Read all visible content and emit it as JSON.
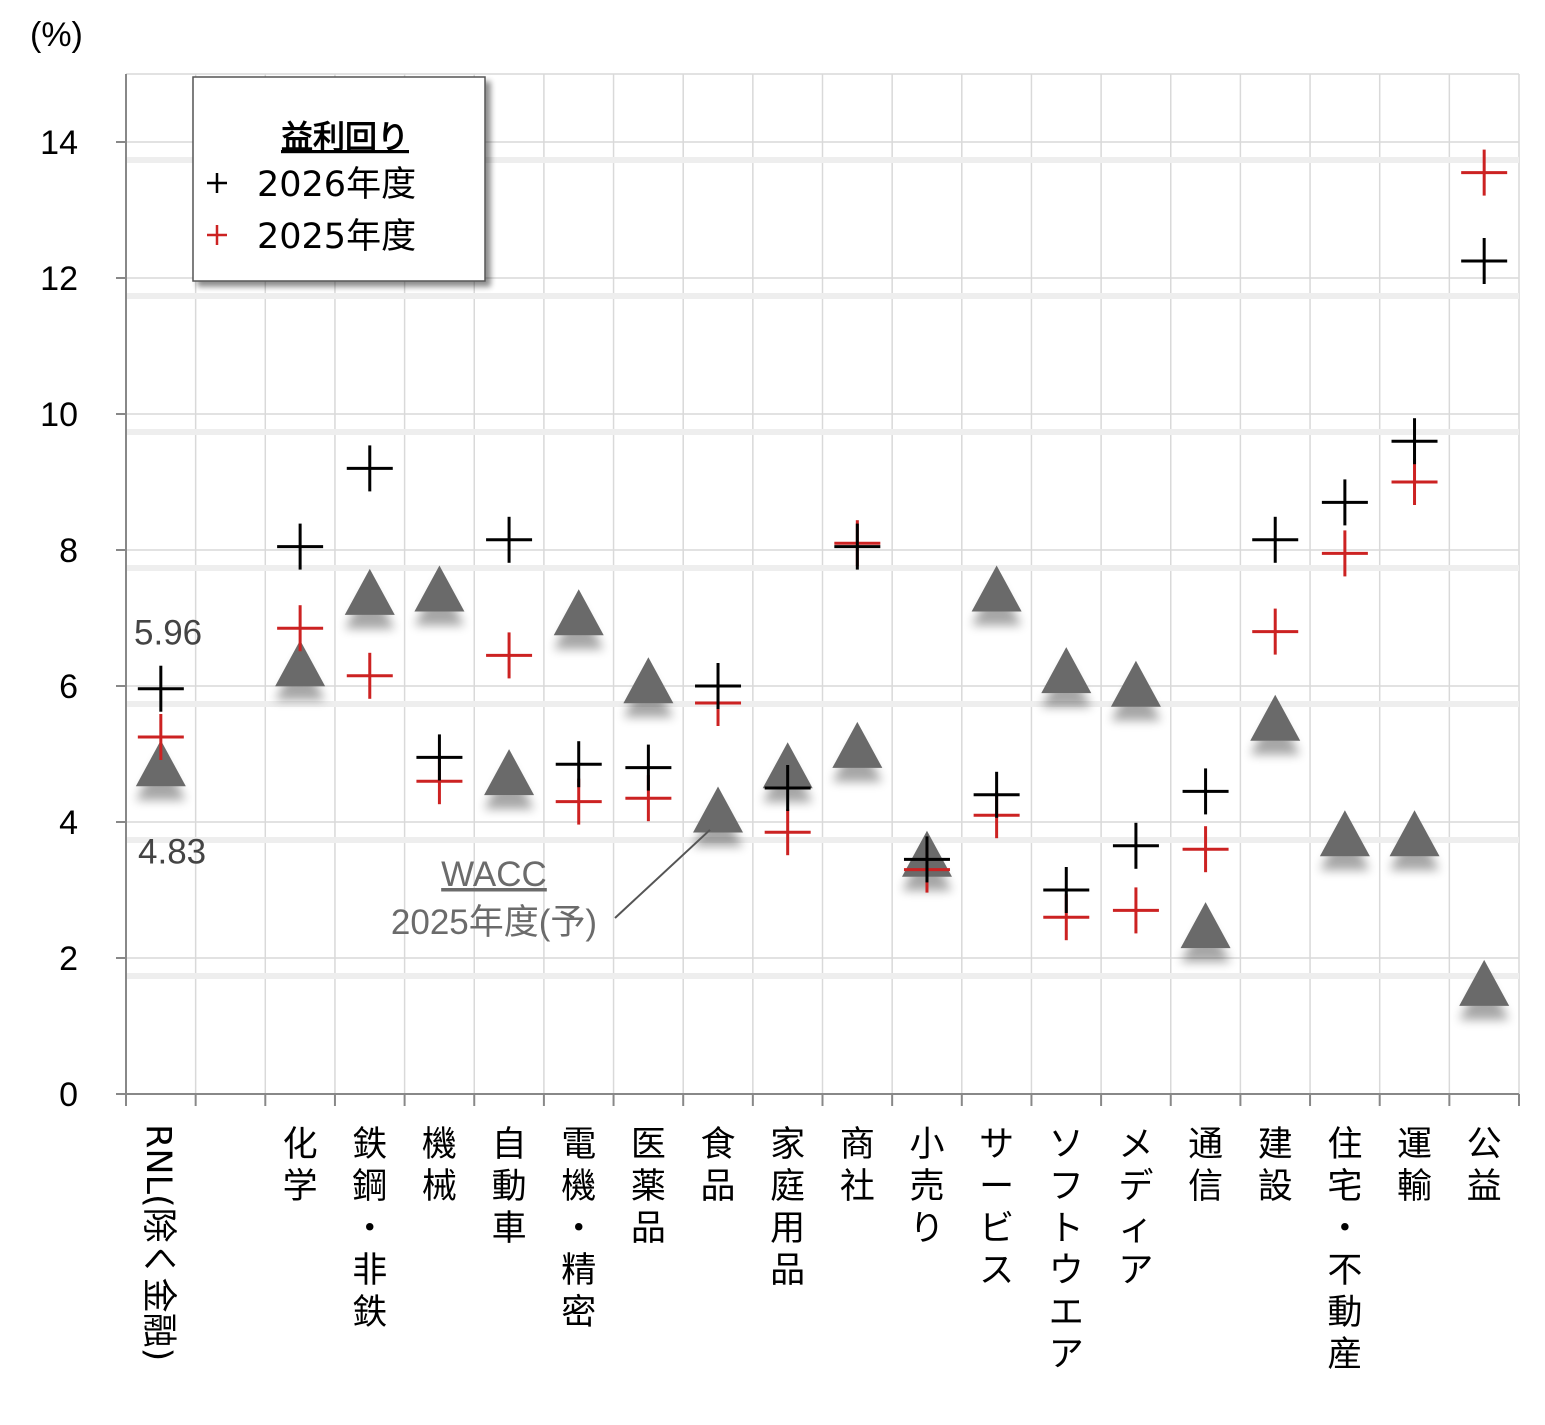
{
  "chart_data": {
    "type": "scatter",
    "unit_label": "(%)",
    "ylim": [
      0,
      15
    ],
    "yticks": [
      0,
      2,
      4,
      6,
      8,
      10,
      12,
      14
    ],
    "grid": true,
    "categories": [
      "RNL(除く金融)",
      "",
      "化学",
      "鉄鋼・非鉄",
      "機械",
      "自動車",
      "電機・精密",
      "医薬品",
      "食品",
      "家庭用品",
      "商社",
      "小売り",
      "サービス",
      "ソフトウエア",
      "メディア",
      "通信",
      "建設",
      "住宅・不動産",
      "運輸",
      "公益"
    ],
    "legend": {
      "title": "益利回り",
      "placement": "top-left",
      "entries": [
        {
          "label": "2026年度",
          "color": "#000000",
          "marker": "+"
        },
        {
          "label": "2025年度",
          "color": "#cc2222",
          "marker": "+"
        }
      ]
    },
    "series": [
      {
        "name": "2026年度",
        "color": "#000000",
        "marker": "plus",
        "values": [
          5.96,
          null,
          8.05,
          9.2,
          4.95,
          8.15,
          4.85,
          4.8,
          6.0,
          4.5,
          8.05,
          3.45,
          4.4,
          3.0,
          3.65,
          4.45,
          8.15,
          8.7,
          9.6,
          12.25
        ]
      },
      {
        "name": "2025年度",
        "color": "#cc2222",
        "marker": "plus",
        "values": [
          5.25,
          null,
          6.85,
          6.15,
          4.6,
          6.45,
          4.3,
          4.35,
          5.75,
          3.85,
          8.1,
          3.3,
          4.1,
          2.6,
          2.7,
          3.6,
          6.8,
          7.95,
          9.0,
          13.55
        ]
      },
      {
        "name": "WACC 2025年度(予)",
        "color": "#6b6b6b",
        "marker": "triangle",
        "values": [
          4.83,
          null,
          6.3,
          7.35,
          7.4,
          4.7,
          7.05,
          6.05,
          4.15,
          4.8,
          5.1,
          3.5,
          7.4,
          6.2,
          6.0,
          2.45,
          5.5,
          3.8,
          3.8,
          1.6
        ]
      }
    ],
    "annotations": [
      {
        "text": "5.96",
        "category": "RNL(除く金融)",
        "value": 5.96
      },
      {
        "text": "4.83",
        "category": "RNL(除く金融)",
        "value": 4.83
      }
    ],
    "wacc_label": {
      "line1": "WACC",
      "line2": "2025年度(予)",
      "points_to": "食品"
    }
  }
}
